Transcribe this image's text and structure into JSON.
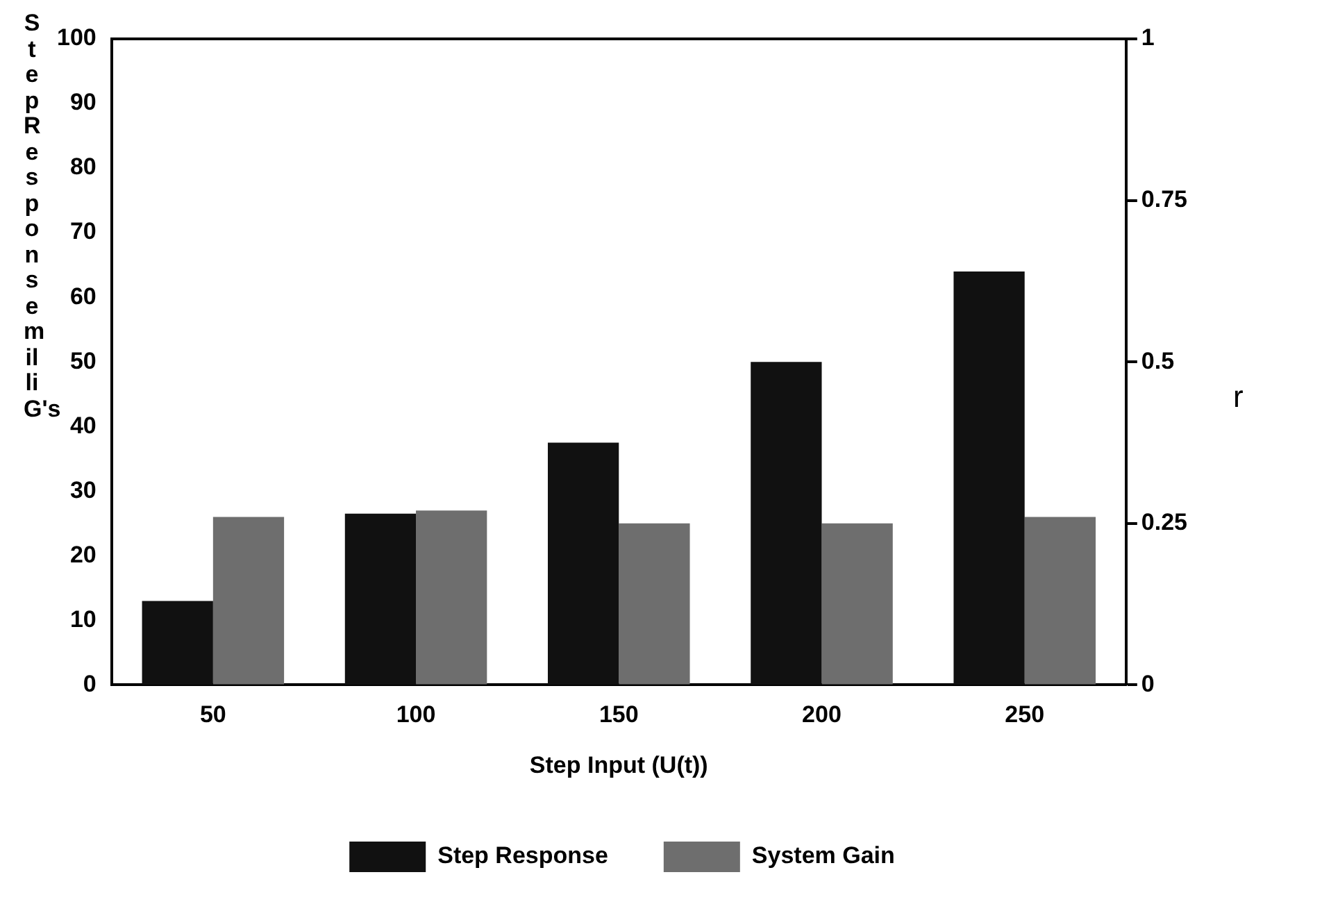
{
  "chart_data": {
    "type": "bar",
    "xlabel": "Step Input (U(t))",
    "ylabel": "Step Response milli G's",
    "y2label": "r",
    "categories": [
      "50",
      "100",
      "150",
      "200",
      "250"
    ],
    "series": [
      {
        "name": "Step Response",
        "color": "#111111",
        "values": [
          13,
          26.5,
          37.5,
          50,
          64
        ]
      },
      {
        "name": "System Gain",
        "color": "#6e6e6e",
        "values": [
          0.26,
          0.27,
          0.25,
          0.25,
          0.26
        ],
        "axis": "y2"
      }
    ],
    "ylim": [
      0,
      100
    ],
    "yticks": [
      0,
      10,
      20,
      30,
      40,
      50,
      60,
      70,
      80,
      90,
      100
    ],
    "y2lim": [
      0,
      1
    ],
    "y2ticks": [
      0,
      0.25,
      0.5,
      0.75,
      1
    ],
    "legend": "bottom",
    "grid": false
  }
}
